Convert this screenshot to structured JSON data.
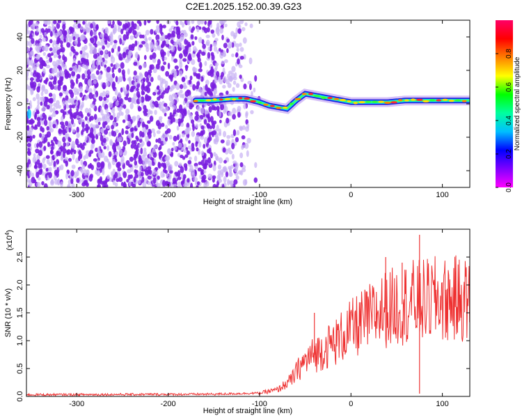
{
  "figure_title": "C2E1.2025.152.00.39.G23",
  "colors": {
    "spectrogram_low": "#c8b0f4",
    "spectrogram_mid": "#7a1ee0",
    "snr_line": "#ee3030"
  },
  "chart_data": [
    {
      "type": "heatmap",
      "title": "C2E1.2025.152.00.39.G23",
      "xlabel": "Height of straight line (km)",
      "ylabel": "Frequency (Hz)",
      "xlim": [
        -355,
        130
      ],
      "ylim": [
        -50,
        50
      ],
      "x_ticks": [
        "-300",
        "-200",
        "-100",
        "0",
        "100"
      ],
      "y_ticks": [
        "40",
        "20",
        "0",
        "-20",
        "-40"
      ],
      "colorbar": {
        "label": "Normalized spectral amplitude",
        "range": [
          0,
          1
        ],
        "ticks": [
          "0.0",
          "0.2",
          "0.4",
          "0.6",
          "0.8"
        ],
        "colormap": [
          "#ff00ff",
          "#7f00ff",
          "#0000ff",
          "#00bfff",
          "#00ff9f",
          "#00ff00",
          "#ffff00",
          "#ff7f00",
          "#ff0000",
          "#ff0066"
        ]
      },
      "noise_region": {
        "x_range": [
          -355,
          -100
        ],
        "f_range": [
          -50,
          50
        ]
      },
      "signal_track": {
        "x": [
          -170,
          -150,
          -130,
          -115,
          -100,
          -90,
          -80,
          -70,
          -60,
          -50,
          -40,
          -30,
          -20,
          -10,
          0,
          20,
          40,
          60,
          80,
          100,
          130
        ],
        "freq": [
          2,
          2,
          3,
          3,
          1,
          -1,
          -2,
          -3,
          2,
          6,
          5,
          4,
          3,
          2,
          1,
          1,
          1,
          2,
          2,
          2,
          2
        ]
      },
      "grid": false
    },
    {
      "type": "line",
      "xlabel": "Height of straight line (km)",
      "ylabel": "SNR (10 * v/v)",
      "scale_label": "(x10",
      "scale_exponent": "4",
      "xlim": [
        -355,
        130
      ],
      "ylim": [
        0,
        3.0
      ],
      "x_ticks": [
        "-300",
        "-200",
        "-100",
        "0",
        "100"
      ],
      "y_ticks": [
        "0.0",
        "0.5",
        "1.0",
        "1.5",
        "2.0",
        "2.5"
      ],
      "series": [
        {
          "envelope": {
            "x": [
              -355,
              -150,
              -100,
              -80,
              -65,
              -55,
              -45,
              -35,
              -25,
              -15,
              -5,
              5,
              15,
              25,
              35,
              45,
              55,
              65,
              75,
              85,
              95,
              105,
              115,
              130
            ],
            "y": [
              0.03,
              0.04,
              0.06,
              0.12,
              0.3,
              0.55,
              0.7,
              0.8,
              0.9,
              1.0,
              1.15,
              1.25,
              1.35,
              1.45,
              1.55,
              1.6,
              1.65,
              1.7,
              1.7,
              1.72,
              1.75,
              1.72,
              1.75,
              1.72
            ]
          },
          "spikes": [
            {
              "x": 75,
              "y": 2.9
            },
            {
              "x": 75,
              "y": 0.05
            },
            {
              "x": 38,
              "y": 2.5
            },
            {
              "x": 56,
              "y": 2.4
            },
            {
              "x": -40,
              "y": 1.5
            }
          ]
        }
      ],
      "grid": false
    }
  ]
}
